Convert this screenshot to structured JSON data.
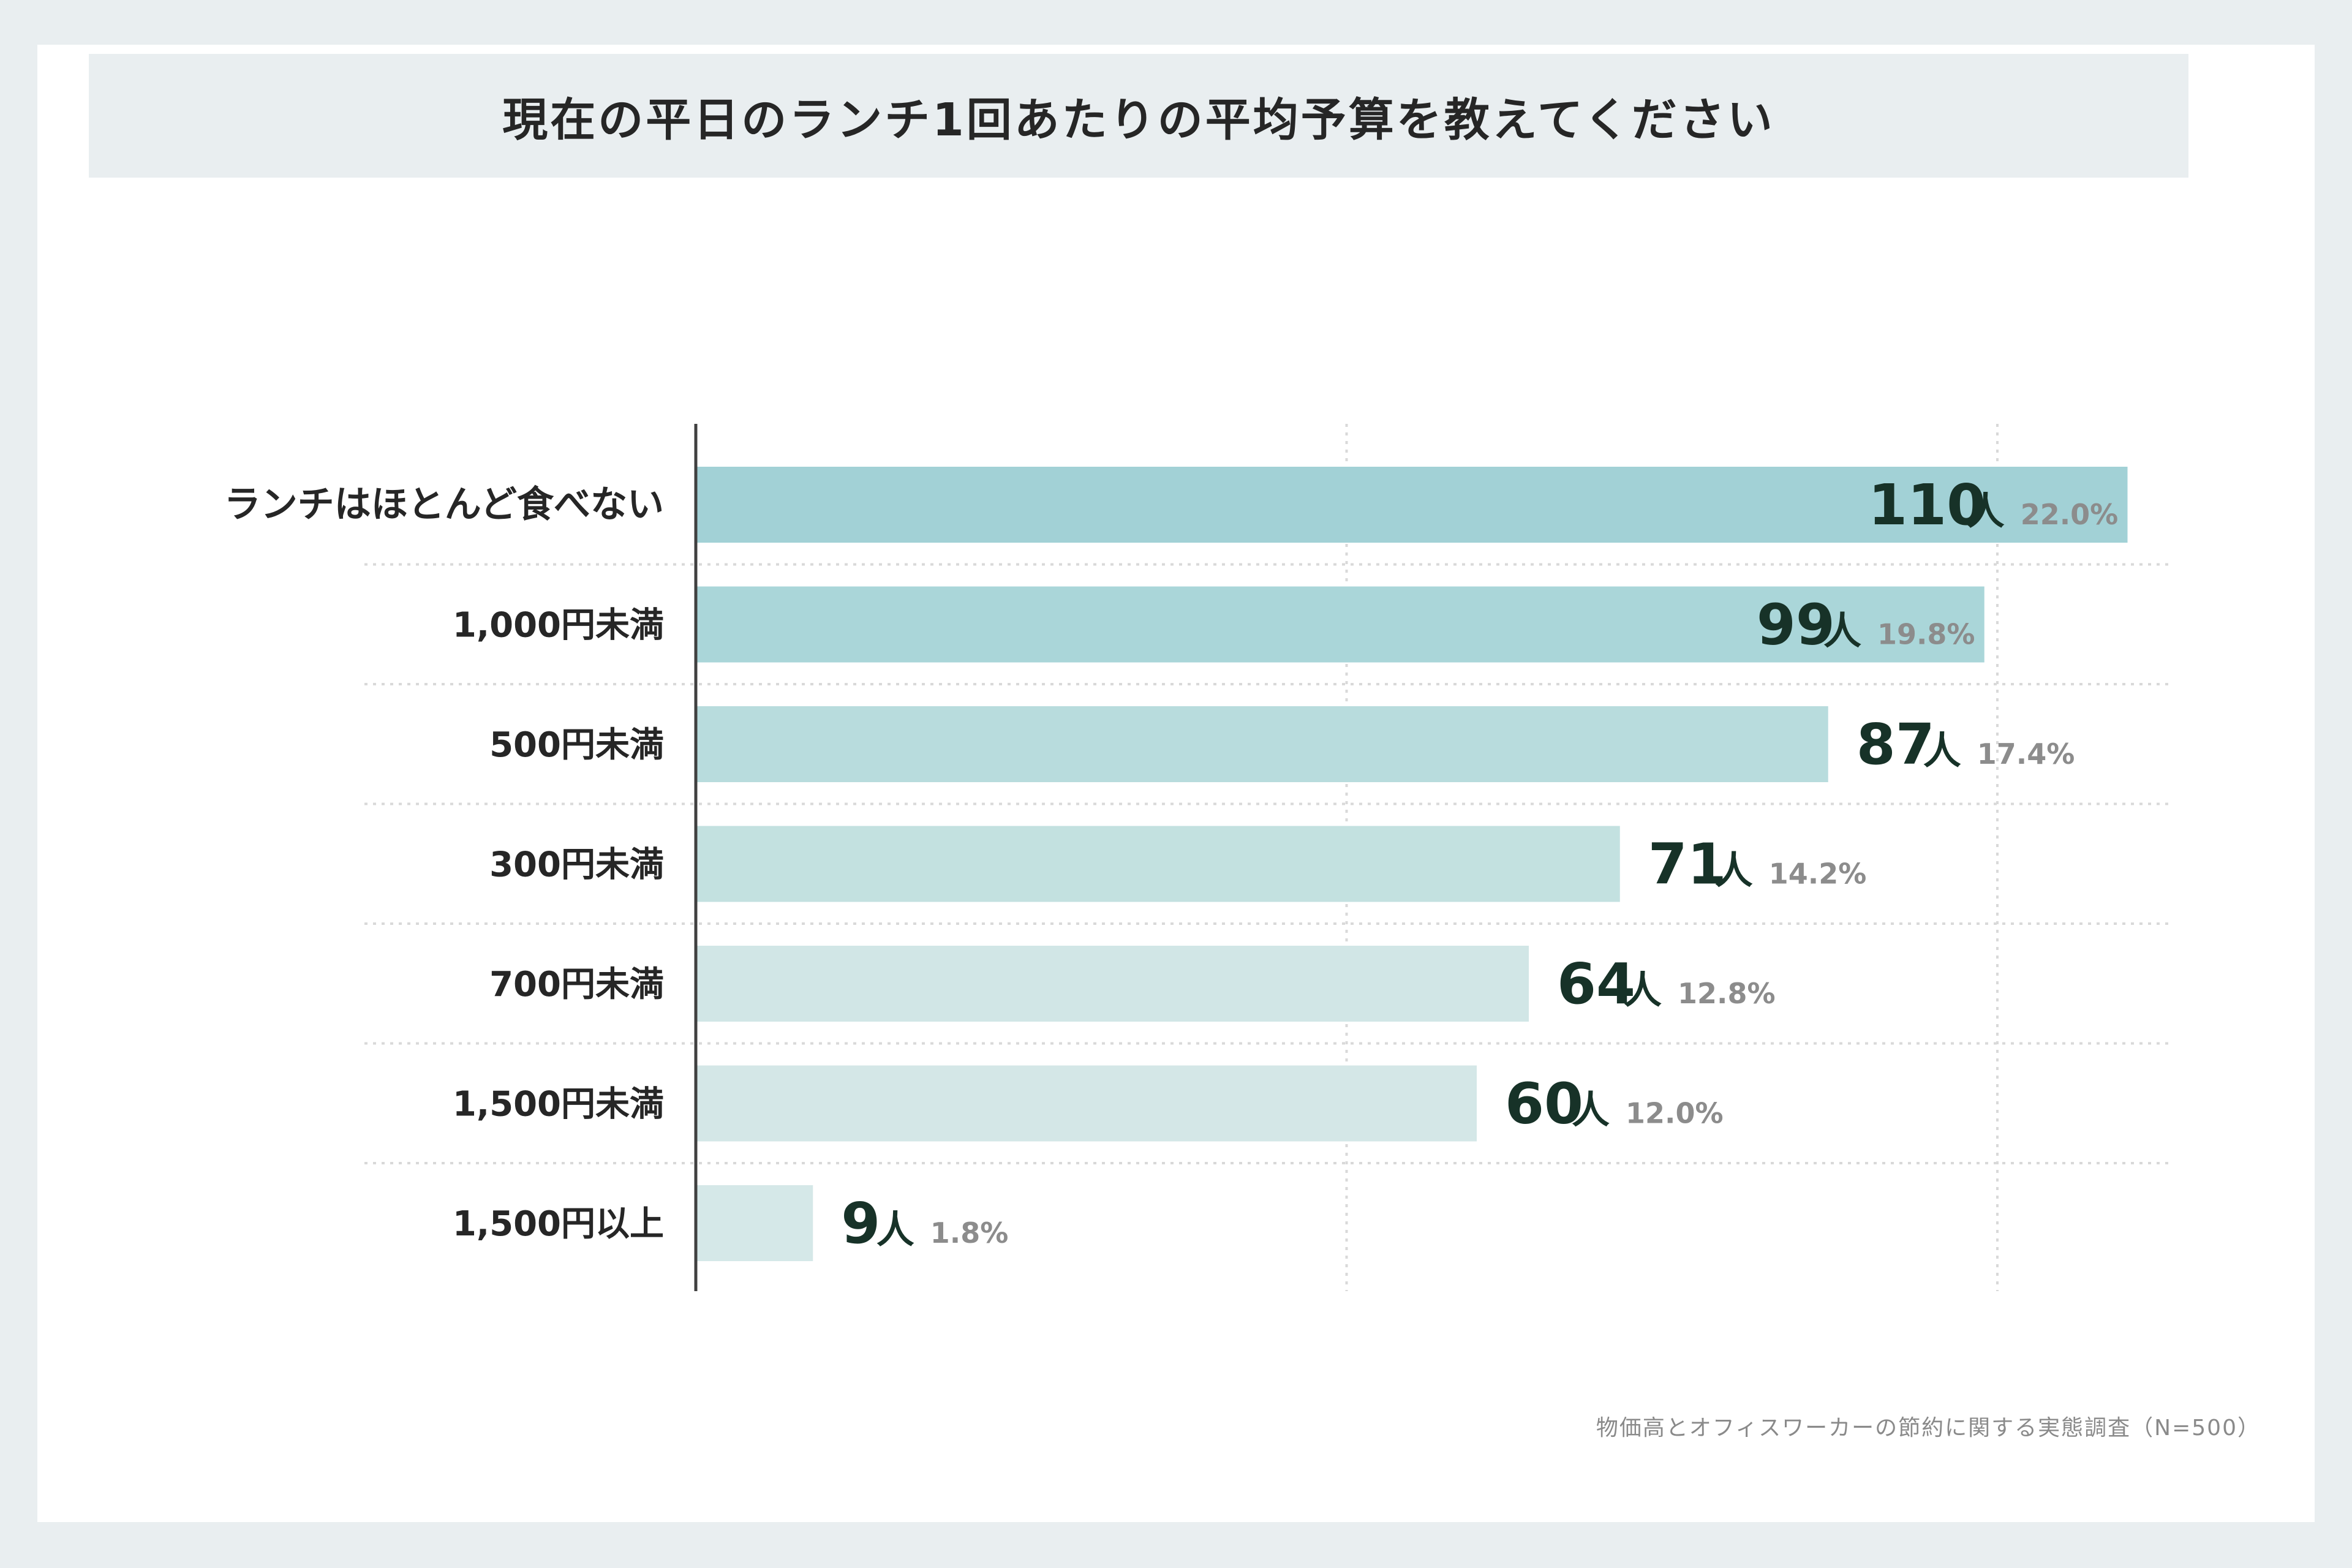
{
  "chart_data": {
    "type": "bar",
    "orientation": "horizontal",
    "title": "現在の平日のランチ1回あたりの平均予算を教えてください",
    "categories": [
      "ランチはほとんど食べない",
      "1,000円未満",
      "500円未満",
      "300円未満",
      "700円未満",
      "1,500円未満",
      "1,500円以上"
    ],
    "values": [
      110,
      99,
      87,
      71,
      64,
      60,
      9
    ],
    "value_unit": "人",
    "percent_labels": [
      "22.0%",
      "19.8%",
      "17.4%",
      "14.2%",
      "12.8%",
      "12.0%",
      "1.8%"
    ],
    "xlim": [
      0,
      115
    ],
    "grid": "vertical dotted",
    "legend": "none",
    "bar_colors": [
      "#a2d1d6",
      "#aad6d9",
      "#b8dcdd",
      "#c3e1e0",
      "#d1e6e6",
      "#d4e7e7",
      "#d5e8e8"
    ],
    "source": "物価高とオフィスワーカーの節約に関する実態調査（N=500）"
  },
  "colors": {
    "page_bg": "#e9eef0",
    "card_bg": "#ffffff",
    "value_text": "#173228",
    "percent_text": "#8c8c8c",
    "label_text": "#262626",
    "axis": "#404040",
    "grid": "#d9d9d9"
  }
}
